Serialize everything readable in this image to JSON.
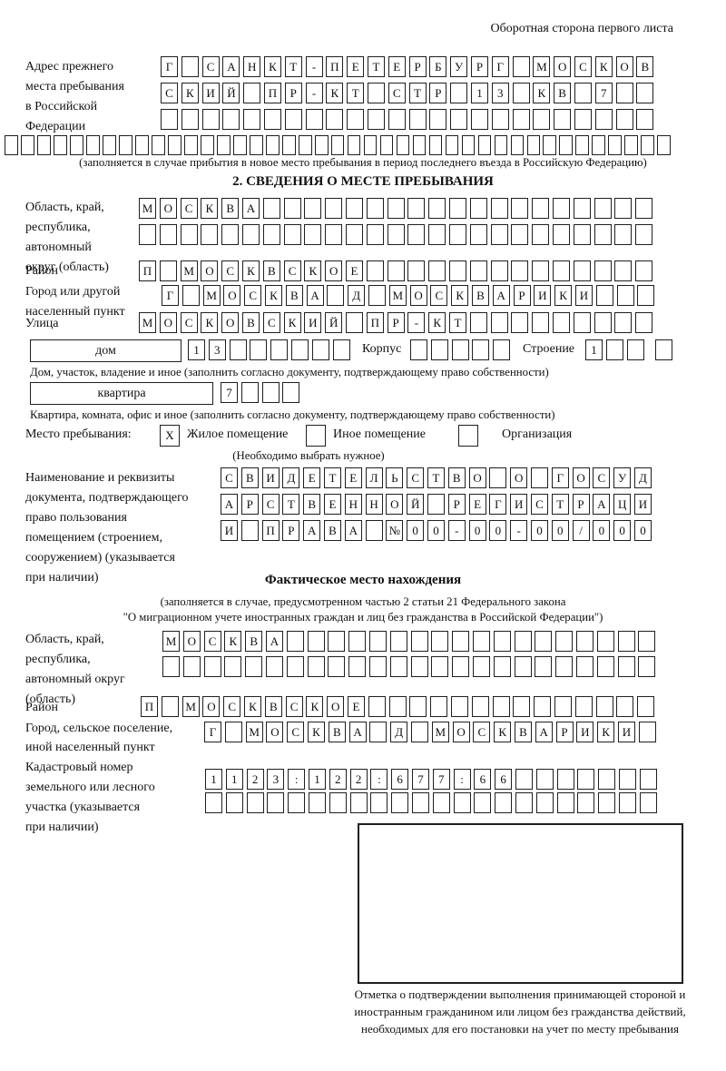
{
  "header": {
    "note": "Оборотная сторона первого листа"
  },
  "prev_address": {
    "label": "Адрес прежнего\nместа пребывания\nв Российской\nФедерации",
    "row1": {
      "cells": "Г САНКТ-ПЕТЕРБУРГ МОСКОВ",
      "len": 24
    },
    "row2": {
      "cells": "СКИЙ ПР-КТ СТР 13 КВ 7",
      "len": 24
    },
    "row3": {
      "cells": "",
      "len": 24
    },
    "row4": {
      "cells": "",
      "len": 41
    },
    "note": "(заполняется в случае прибытия в новое место пребывания в период последнего въезда в Российскую Федерацию)"
  },
  "section2": {
    "title": "2. СВЕДЕНИЯ О МЕСТЕ ПРЕБЫВАНИЯ",
    "region": {
      "label": "Область, край,\nреспублика,\nавтономный\nокруг (область)",
      "row1": {
        "cells": "МОСКВА",
        "len": 25
      },
      "row2": {
        "cells": "",
        "len": 25
      }
    },
    "district": {
      "label": "Район",
      "row": {
        "cells": "П МОСКВСКОЕ",
        "len": 25
      }
    },
    "city": {
      "label": "Город или другой\nнаселенный пункт",
      "row": {
        "cells": "Г МОСКВА Д МОСКВАРИКИ",
        "len": 24
      }
    },
    "street": {
      "label": "Улица",
      "row": {
        "cells": "МОСКОВСКИЙ ПР-КТ",
        "len": 25
      }
    },
    "house": {
      "box_label": "дом",
      "row": {
        "cells": "13",
        "len": 8
      },
      "korpus_label": "Корпус",
      "korpus_row": {
        "cells": "",
        "len": 5
      },
      "stroenie_label": "Строение",
      "stroenie_row": {
        "cells": "1",
        "len": 3
      },
      "extra_cell": {
        "cells": "",
        "len": 1
      },
      "note": "Дом, участок, владение и иное (заполнить согласно документу, подтверждающему право собственности)"
    },
    "apartment": {
      "box_label": "квартира",
      "row": {
        "cells": "7",
        "len": 4
      },
      "note": "Квартира, комната, офис и иное (заполнить согласно документу, подтверждающему право собственности)"
    },
    "stay_type": {
      "label": "Место пребывания:",
      "options": [
        {
          "label": "Жилое помещение",
          "mark": "X"
        },
        {
          "label": "Иное помещение",
          "mark": ""
        },
        {
          "label": "Организация",
          "mark": ""
        }
      ],
      "note": "(Необходимо выбрать нужное)"
    },
    "document": {
      "label": "Наименование и реквизиты\nдокумента, подтверждающего\nправо пользования\nпомещением (строением,\nсооружением) (указывается\nпри наличии)",
      "row1": {
        "cells": "СВИДЕТЕЛЬСТВО О ГОСУД",
        "len": 21
      },
      "row2": {
        "cells": "АРСТВЕННОЙ РЕГИСТРАЦИ",
        "len": 21
      },
      "row3": {
        "cells": "И ПРАВА №00-00-00/000",
        "len": 21
      }
    }
  },
  "actual_location": {
    "title": "Фактическое место нахождения",
    "note1": "(заполняется в случае, предусмотренном частью 2 статьи 21 Федерального закона",
    "note2": "\"О миграционном учете иностранных граждан и лиц без гражданства в Российской Федерации\")",
    "region": {
      "label": "Область, край,\nреспублика,\nавтономный округ\n(область)",
      "row1": {
        "cells": "МОСКВА",
        "len": 24
      },
      "row2": {
        "cells": "",
        "len": 24
      }
    },
    "district": {
      "label": "Район",
      "row": {
        "cells": "П МОСКВСКОЕ",
        "len": 25
      }
    },
    "city": {
      "label": "Город, сельское поселение,\nиной населенный пункт",
      "row": {
        "cells": "Г МОСКВА Д МОСКВАРИКИ",
        "len": 22
      }
    },
    "cadastral": {
      "label": "Кадастровый номер\nземельного или лесного\nучастка (указывается\nпри наличии)",
      "row1": {
        "cells": "1123:122:677:66",
        "len": 22
      },
      "row2": {
        "cells": "",
        "len": 22
      }
    }
  },
  "stamp": {
    "caption": "Отметка о подтверждении выполнения принимающей стороной и иностранным гражданином или лицом без гражданства действий, необходимых для его постановки на учет по месту пребывания"
  }
}
